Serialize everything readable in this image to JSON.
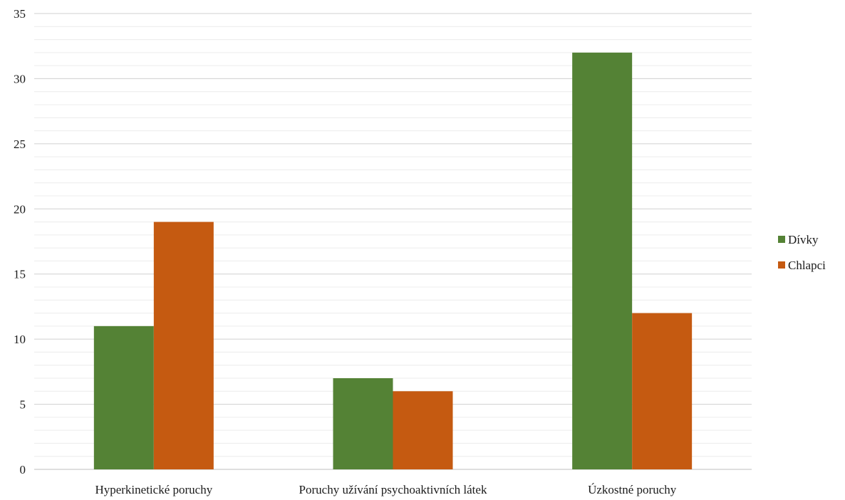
{
  "chart_data": {
    "type": "bar",
    "title": "",
    "xlabel": "",
    "ylabel": "",
    "categories": [
      "Hyperkinetické poruchy",
      "Poruchy užívání psychoaktivních látek",
      "Úzkostné poruchy"
    ],
    "series": [
      {
        "name": "Dívky",
        "color": "#548235",
        "values": [
          11,
          7,
          32
        ]
      },
      {
        "name": "Chlapci",
        "color": "#c55a11",
        "values": [
          19,
          6,
          12
        ]
      }
    ],
    "ylim": [
      0,
      35
    ],
    "yticks": [
      "0",
      "5",
      "10",
      "15",
      "20",
      "25",
      "30",
      "35"
    ],
    "grid": true,
    "legend_position": "right"
  }
}
